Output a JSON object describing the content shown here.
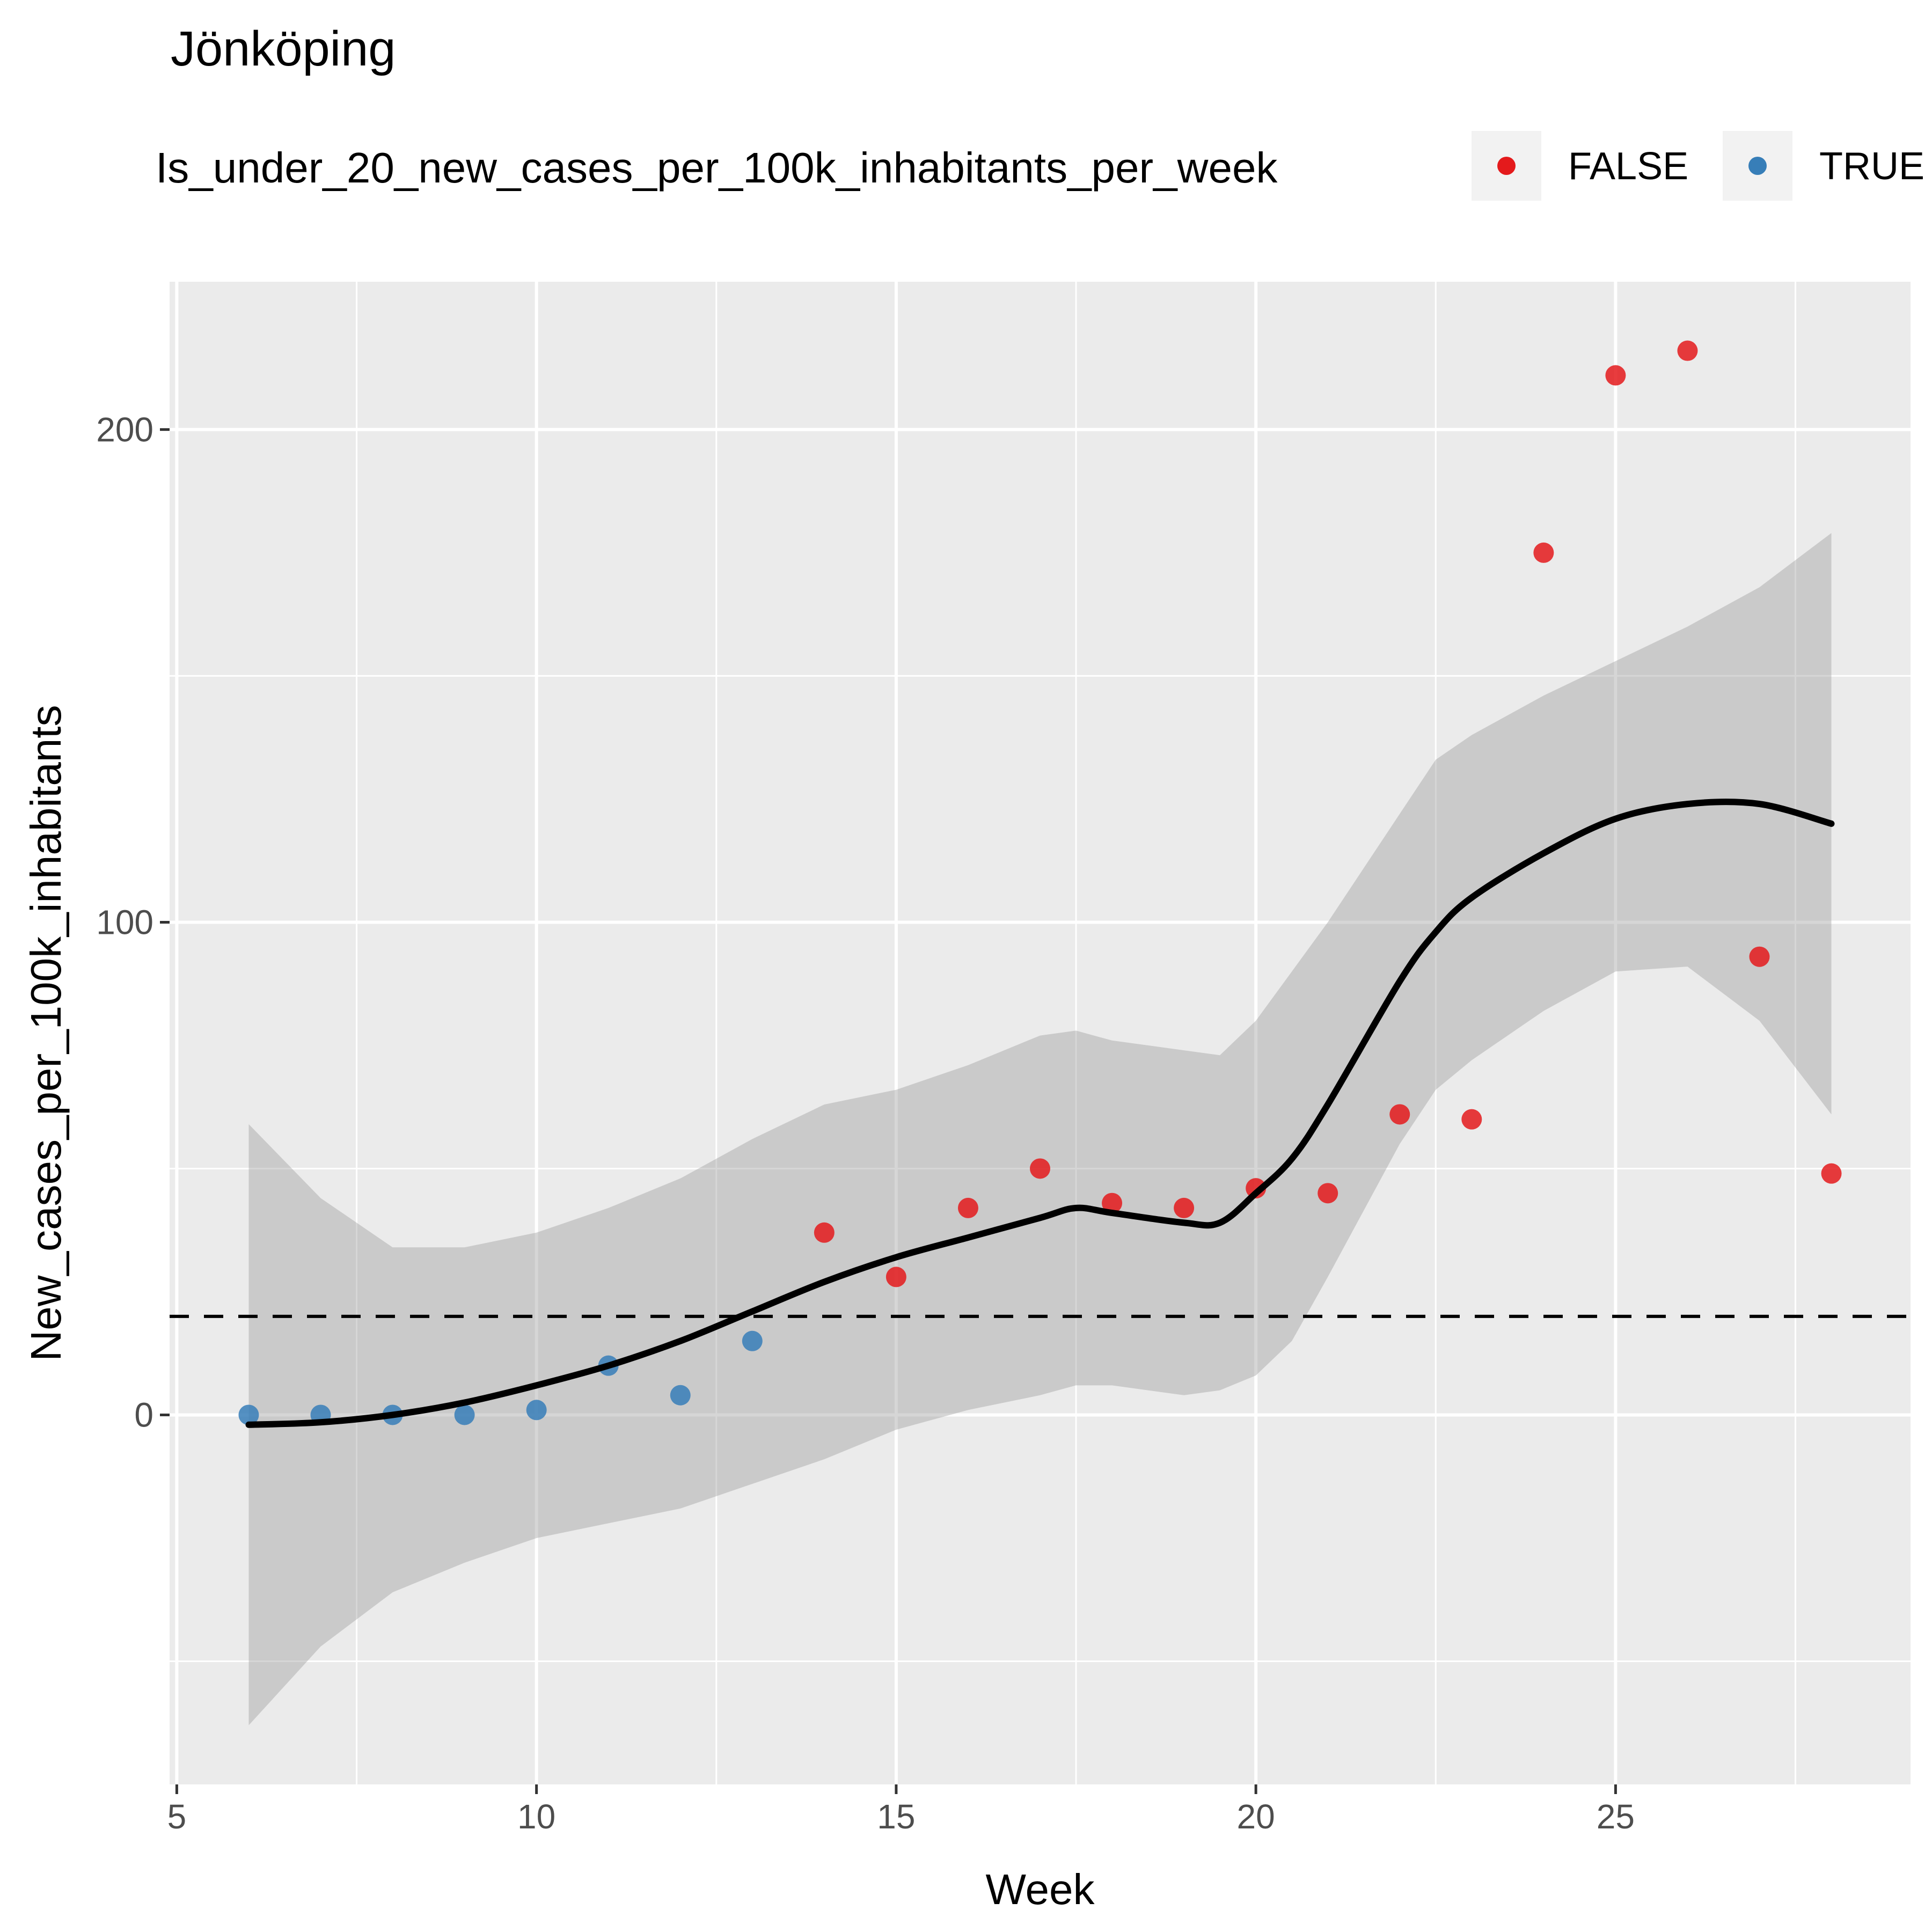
{
  "chart_data": {
    "type": "scatter",
    "title": "Jönköping",
    "xlabel": "Week",
    "ylabel": "New_cases_per_100k_inhabitants",
    "xlim": [
      4.9,
      29.1
    ],
    "ylim": [
      -75,
      230
    ],
    "x_ticks": [
      5,
      10,
      15,
      20,
      25
    ],
    "y_ticks": [
      0,
      100,
      200
    ],
    "x_tick_labels": [
      "5",
      "10",
      "15",
      "20",
      "25"
    ],
    "y_tick_labels": [
      "0",
      "100",
      "200"
    ],
    "grid": true,
    "legend": {
      "title": "Is_under_20_new_cases_per_100k_inhabitants_per_week",
      "position": "top",
      "entries": [
        {
          "label": "FALSE",
          "color": "#e41a1c"
        },
        {
          "label": "TRUE",
          "color": "#377eb8"
        }
      ]
    },
    "reference_line": {
      "y": 20,
      "style": "dashed",
      "color": "#000000"
    },
    "series": [
      {
        "name": "FALSE",
        "color": "#e41a1c",
        "points": [
          {
            "x": 14,
            "y": 37
          },
          {
            "x": 15,
            "y": 28
          },
          {
            "x": 16,
            "y": 42
          },
          {
            "x": 17,
            "y": 50
          },
          {
            "x": 18,
            "y": 43
          },
          {
            "x": 19,
            "y": 42
          },
          {
            "x": 20,
            "y": 46
          },
          {
            "x": 21,
            "y": 45
          },
          {
            "x": 22,
            "y": 61
          },
          {
            "x": 23,
            "y": 60
          },
          {
            "x": 24,
            "y": 175
          },
          {
            "x": 25,
            "y": 211
          },
          {
            "x": 26,
            "y": 216
          },
          {
            "x": 27,
            "y": 93
          },
          {
            "x": 28,
            "y": 49
          }
        ]
      },
      {
        "name": "TRUE",
        "color": "#377eb8",
        "points": [
          {
            "x": 6,
            "y": 0
          },
          {
            "x": 7,
            "y": 0
          },
          {
            "x": 8,
            "y": 0
          },
          {
            "x": 9,
            "y": 0
          },
          {
            "x": 10,
            "y": 1
          },
          {
            "x": 11,
            "y": 10
          },
          {
            "x": 12,
            "y": 4
          },
          {
            "x": 13,
            "y": 15
          }
        ]
      }
    ],
    "smooth": {
      "color": "#000000",
      "band_color": "#999999",
      "points": [
        {
          "x": 6,
          "y": -2,
          "lo": -63,
          "hi": 59
        },
        {
          "x": 7,
          "y": -1.5,
          "lo": -47,
          "hi": 44
        },
        {
          "x": 8,
          "y": 0,
          "lo": -36,
          "hi": 34
        },
        {
          "x": 9,
          "y": 2.5,
          "lo": -30,
          "hi": 34
        },
        {
          "x": 10,
          "y": 6,
          "lo": -25,
          "hi": 37
        },
        {
          "x": 11,
          "y": 10,
          "lo": -22,
          "hi": 42
        },
        {
          "x": 12,
          "y": 15,
          "lo": -19,
          "hi": 48
        },
        {
          "x": 13,
          "y": 21,
          "lo": -14,
          "hi": 56
        },
        {
          "x": 14,
          "y": 27,
          "lo": -9,
          "hi": 63
        },
        {
          "x": 15,
          "y": 32,
          "lo": -3,
          "hi": 66
        },
        {
          "x": 16,
          "y": 36,
          "lo": 1,
          "hi": 71
        },
        {
          "x": 17,
          "y": 40,
          "lo": 4,
          "hi": 77
        },
        {
          "x": 17.5,
          "y": 42,
          "lo": 6,
          "hi": 78
        },
        {
          "x": 18,
          "y": 41,
          "lo": 6,
          "hi": 76
        },
        {
          "x": 19,
          "y": 39,
          "lo": 4,
          "hi": 74
        },
        {
          "x": 19.5,
          "y": 39,
          "lo": 5,
          "hi": 73
        },
        {
          "x": 20,
          "y": 45,
          "lo": 8,
          "hi": 80
        },
        {
          "x": 20.5,
          "y": 52,
          "lo": 15,
          "hi": 90
        },
        {
          "x": 21,
          "y": 63,
          "lo": 28,
          "hi": 100
        },
        {
          "x": 22,
          "y": 88,
          "lo": 55,
          "hi": 122
        },
        {
          "x": 22.5,
          "y": 98,
          "lo": 66,
          "hi": 133
        },
        {
          "x": 23,
          "y": 105,
          "lo": 72,
          "hi": 138
        },
        {
          "x": 24,
          "y": 114,
          "lo": 82,
          "hi": 146
        },
        {
          "x": 25,
          "y": 121,
          "lo": 90,
          "hi": 153
        },
        {
          "x": 26,
          "y": 124,
          "lo": 91,
          "hi": 160
        },
        {
          "x": 27,
          "y": 124,
          "lo": 80,
          "hi": 168
        },
        {
          "x": 28,
          "y": 120,
          "lo": 61,
          "hi": 179
        }
      ]
    }
  }
}
